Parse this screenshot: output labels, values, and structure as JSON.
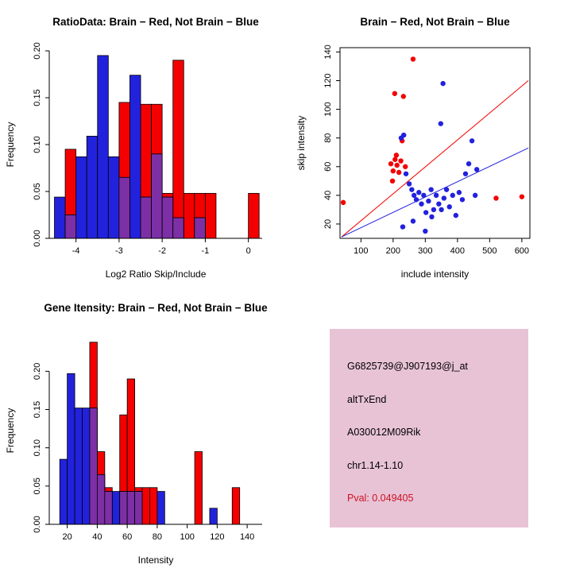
{
  "figure": {
    "background": "#ffffff"
  },
  "chart_data": [
    {
      "type": "bar",
      "subtype": "overlaid-histogram",
      "title": "RatioData: Brain − Red, Not Brain − Blue",
      "xlabel": "Log2 Ratio Skip/Include",
      "ylabel": "Frequency",
      "xlim": [
        -4.62,
        0.32
      ],
      "ylim": [
        0,
        0.2
      ],
      "xticks": [
        -4,
        -3,
        -2,
        -1,
        0
      ],
      "xtick_labels": [
        "-4",
        "-3",
        "-2",
        "-1",
        "0"
      ],
      "yticks": [
        0,
        0.05,
        0.1,
        0.15,
        0.2
      ],
      "ytick_labels": [
        "0.00",
        "0.05",
        "0.10",
        "0.15",
        "0.20"
      ],
      "bin_width": 0.25,
      "grid": false,
      "legend": "none",
      "overlap_color": "#7d2fa6",
      "series": [
        {
          "name": "Brain",
          "color": "#f40000",
          "bins": [
            [
              -4.25,
              0.095
            ],
            [
              -3.0,
              0.145
            ],
            [
              -2.5,
              0.143
            ],
            [
              -2.25,
              0.143
            ],
            [
              -2.0,
              0.048
            ],
            [
              -1.75,
              0.19
            ],
            [
              -1.5,
              0.048
            ],
            [
              -1.25,
              0.048
            ],
            [
              -1.0,
              0.048
            ],
            [
              0.0,
              0.048
            ]
          ]
        },
        {
          "name": "Not Brain",
          "color": "#2222dd",
          "bins": [
            [
              -4.5,
              0.044
            ],
            [
              -4.25,
              0.025
            ],
            [
              -4.0,
              0.087
            ],
            [
              -3.75,
              0.109
            ],
            [
              -3.5,
              0.195
            ],
            [
              -3.25,
              0.087
            ],
            [
              -3.0,
              0.065
            ],
            [
              -2.75,
              0.174
            ],
            [
              -2.5,
              0.044
            ],
            [
              -2.25,
              0.09
            ],
            [
              -2.0,
              0.044
            ],
            [
              -1.75,
              0.022
            ],
            [
              -1.25,
              0.022
            ]
          ]
        }
      ]
    },
    {
      "type": "scatter",
      "title": "Brain − Red, Not Brain − Blue",
      "xlabel": "include intensity",
      "ylabel": "skip intensity",
      "xlim": [
        35,
        625
      ],
      "ylim": [
        10,
        143
      ],
      "xticks": [
        100,
        200,
        300,
        400,
        500,
        600
      ],
      "xtick_labels": [
        "100",
        "200",
        "300",
        "400",
        "500",
        "600"
      ],
      "yticks": [
        20,
        40,
        60,
        80,
        100,
        120,
        140
      ],
      "ytick_labels": [
        "20",
        "40",
        "60",
        "80",
        "100",
        "120",
        "140"
      ],
      "grid": false,
      "legend": "none",
      "series": [
        {
          "name": "Brain",
          "color": "#f40000",
          "line": [
            40,
            11,
            620,
            120
          ],
          "points": [
            [
              45,
              35
            ],
            [
              205,
              111
            ],
            [
              232,
              109
            ],
            [
              262,
              135
            ],
            [
              193,
              62
            ],
            [
              200,
              57
            ],
            [
              206,
              65
            ],
            [
              212,
              61
            ],
            [
              218,
              56
            ],
            [
              224,
              64
            ],
            [
              210,
              68
            ],
            [
              198,
              50
            ],
            [
              228,
              78
            ],
            [
              238,
              60
            ],
            [
              520,
              38
            ],
            [
              600,
              39
            ]
          ]
        },
        {
          "name": "Not Brain",
          "color": "#2222dd",
          "line": [
            40,
            11,
            620,
            73
          ],
          "points": [
            [
              225,
              80
            ],
            [
              233,
              82
            ],
            [
              355,
              118
            ],
            [
              348,
              90
            ],
            [
              250,
              48
            ],
            [
              258,
              44
            ],
            [
              265,
              40
            ],
            [
              272,
              37
            ],
            [
              280,
              42
            ],
            [
              288,
              34
            ],
            [
              295,
              40
            ],
            [
              302,
              28
            ],
            [
              310,
              36
            ],
            [
              318,
              44
            ],
            [
              326,
              30
            ],
            [
              334,
              40
            ],
            [
              342,
              34
            ],
            [
              350,
              30
            ],
            [
              358,
              38
            ],
            [
              366,
              44
            ],
            [
              375,
              32
            ],
            [
              385,
              40
            ],
            [
              395,
              26
            ],
            [
              405,
              42
            ],
            [
              415,
              37
            ],
            [
              425,
              55
            ],
            [
              435,
              62
            ],
            [
              445,
              78
            ],
            [
              455,
              40
            ],
            [
              230,
              18
            ],
            [
              262,
              22
            ],
            [
              300,
              15
            ],
            [
              320,
              25
            ],
            [
              460,
              58
            ],
            [
              240,
              55
            ]
          ]
        }
      ]
    },
    {
      "type": "bar",
      "subtype": "overlaid-histogram",
      "title": "Gene Itensity: Brain − Red, Not Brain − Blue",
      "xlabel": "Intensity",
      "ylabel": "Frequency",
      "xlim": [
        8,
        150
      ],
      "ylim": [
        0,
        0.245
      ],
      "xticks": [
        20,
        40,
        60,
        80,
        100,
        120,
        140
      ],
      "xtick_labels": [
        "20",
        "40",
        "60",
        "80",
        "100",
        "120",
        "140"
      ],
      "yticks": [
        0,
        0.05,
        0.1,
        0.15,
        0.2
      ],
      "ytick_labels": [
        "0.00",
        "0.05",
        "0.10",
        "0.15",
        "0.20"
      ],
      "bin_width": 5,
      "grid": false,
      "legend": "none",
      "overlap_color": "#7d2fa6",
      "series": [
        {
          "name": "Brain",
          "color": "#f40000",
          "bins": [
            [
              35,
              0.238
            ],
            [
              40,
              0.095
            ],
            [
              45,
              0.048
            ],
            [
              55,
              0.143
            ],
            [
              60,
              0.19
            ],
            [
              65,
              0.048
            ],
            [
              70,
              0.048
            ],
            [
              75,
              0.048
            ],
            [
              105,
              0.095
            ],
            [
              130,
              0.048
            ]
          ]
        },
        {
          "name": "Not Brain",
          "color": "#2222dd",
          "bins": [
            [
              15,
              0.085
            ],
            [
              20,
              0.197
            ],
            [
              25,
              0.152
            ],
            [
              30,
              0.152
            ],
            [
              35,
              0.152
            ],
            [
              40,
              0.065
            ],
            [
              45,
              0.043
            ],
            [
              50,
              0.043
            ],
            [
              55,
              0.043
            ],
            [
              60,
              0.043
            ],
            [
              65,
              0.043
            ],
            [
              80,
              0.043
            ],
            [
              115,
              0.021
            ]
          ]
        }
      ]
    },
    {
      "type": "text-panel",
      "background": "#e8c3d6",
      "lines": [
        {
          "text": "G6825739@J907193@j_at",
          "color": "#000000"
        },
        {
          "text": "altTxEnd",
          "color": "#000000"
        },
        {
          "text": "A030012M09Rik",
          "color": "#000000"
        },
        {
          "text": "chr1.14-1.10",
          "color": "#000000"
        },
        {
          "text": "Pval: 0.049405",
          "color": "#cc1122"
        }
      ]
    }
  ]
}
